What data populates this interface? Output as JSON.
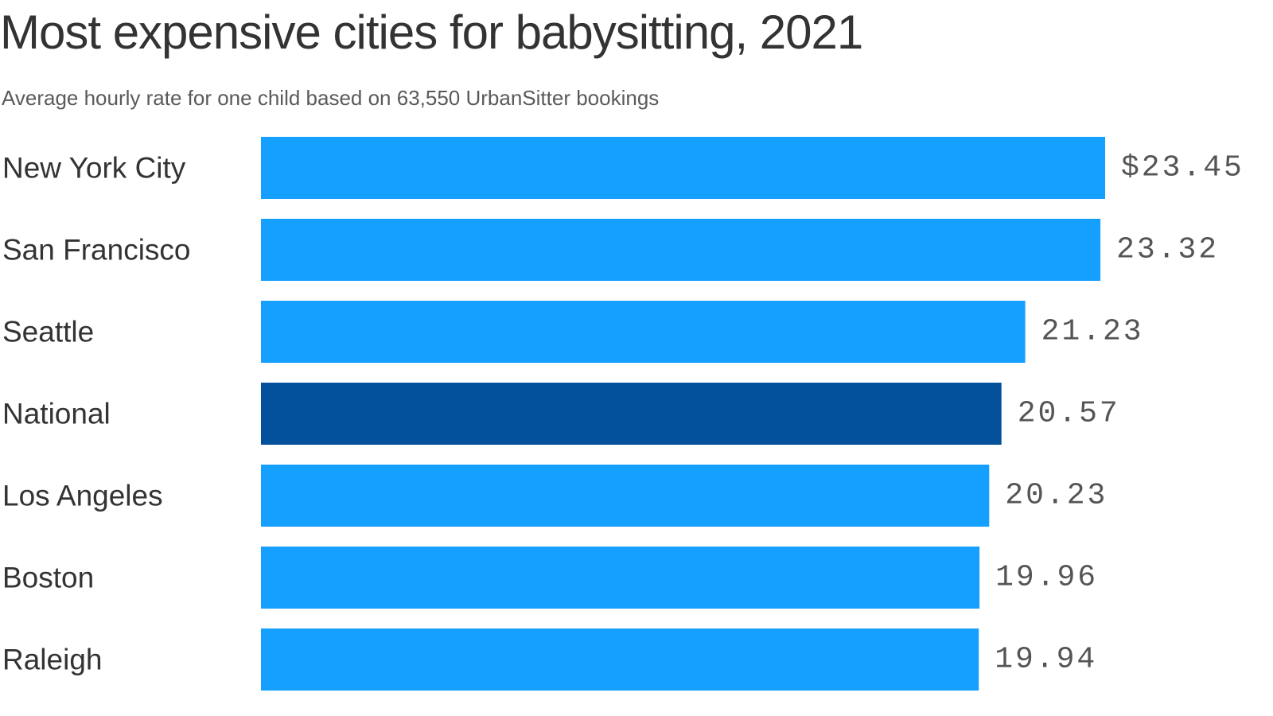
{
  "title": "Most expensive cities for babysitting, 2021",
  "subtitle": "Average hourly rate for one child based on 63,550 UrbanSitter bookings",
  "colors": {
    "bar": "#159FFF",
    "highlight_bar": "#03509D",
    "text": "#333333",
    "value_text": "#555555"
  },
  "chart_data": {
    "type": "bar",
    "orientation": "horizontal",
    "title": "Most expensive cities for babysitting, 2021",
    "subtitle": "Average hourly rate for one child based on 63,550 UrbanSitter bookings",
    "categories": [
      "New York City",
      "San Francisco",
      "Seattle",
      "National",
      "Los Angeles",
      "Boston",
      "Raleigh"
    ],
    "values": [
      23.45,
      23.32,
      21.23,
      20.57,
      20.23,
      19.96,
      19.94
    ],
    "value_labels": [
      "$23.45",
      "23.32",
      "21.23",
      "20.57",
      "20.23",
      "19.96",
      "19.94"
    ],
    "highlight": "National",
    "xlim": [
      0,
      23.45
    ],
    "grid": false,
    "legend": "none"
  }
}
